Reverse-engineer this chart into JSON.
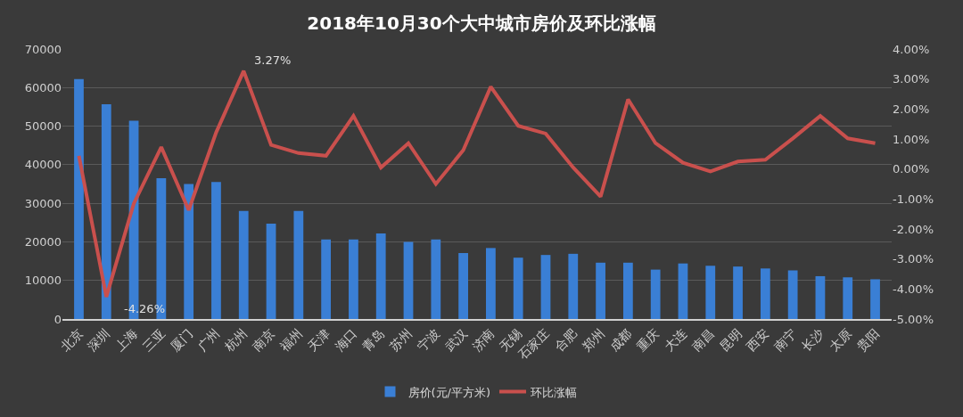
{
  "chart_data": {
    "type": "bar",
    "title": "2018年10月30个大中城市房价及环比涨幅",
    "categories": [
      "北京",
      "深圳",
      "上海",
      "三亚",
      "厦门",
      "广州",
      "杭州",
      "南京",
      "福州",
      "天津",
      "海口",
      "青岛",
      "苏州",
      "宁波",
      "武汉",
      "济南",
      "无锡",
      "石家庄",
      "合肥",
      "郑州",
      "成都",
      "重庆",
      "大连",
      "南昌",
      "昆明",
      "西安",
      "南宁",
      "长沙",
      "太原",
      "贵阳"
    ],
    "series": [
      {
        "name": "房价(元/平方米)",
        "color": "#3a7fd5",
        "values": [
          62200,
          55700,
          51400,
          36500,
          35000,
          35500,
          28000,
          24700,
          28000,
          20600,
          20600,
          22200,
          20000,
          20600,
          17100,
          18400,
          15900,
          16600,
          16900,
          14600,
          14600,
          12800,
          14400,
          13800,
          13600,
          13100,
          12600,
          11100,
          10800,
          10300
        ]
      },
      {
        "name": "环比涨幅",
        "type": "line",
        "axis": "y2",
        "color": "#c9504d",
        "values": [
          0.44,
          -4.26,
          -1.15,
          0.73,
          -1.37,
          1.22,
          3.27,
          0.8,
          0.53,
          0.44,
          1.77,
          0.05,
          0.86,
          -0.5,
          0.63,
          2.74,
          1.44,
          1.18,
          0.05,
          -0.92,
          2.32,
          0.86,
          0.21,
          -0.08,
          0.25,
          0.31,
          1.02,
          1.77,
          1.02,
          0.86
        ],
        "value_labels": [
          null,
          "-4.26%",
          null,
          null,
          null,
          null,
          "3.27%",
          null,
          null,
          null,
          null,
          null,
          null,
          null,
          null,
          null,
          null,
          null,
          null,
          null,
          null,
          null,
          null,
          null,
          null,
          null,
          null,
          null,
          null,
          null
        ]
      }
    ],
    "ylim": [
      0,
      70000
    ],
    "yticks": [
      0,
      10000,
      20000,
      30000,
      40000,
      50000,
      60000,
      70000
    ],
    "y2lim": [
      -5,
      4
    ],
    "y2ticks": [
      {
        "value": -5,
        "label": "-5.00%"
      },
      {
        "value": -4,
        "label": "-4.00%"
      },
      {
        "value": -3,
        "label": "-3.00%"
      },
      {
        "value": -2,
        "label": "-2.00%"
      },
      {
        "value": -1,
        "label": "-1.00%"
      },
      {
        "value": 0,
        "label": "0.00%"
      },
      {
        "value": 1,
        "label": "1.00%"
      },
      {
        "value": 2,
        "label": "2.00%"
      },
      {
        "value": 3,
        "label": "3.00%"
      },
      {
        "value": 4,
        "label": "4.00%"
      }
    ],
    "grid": "y",
    "legend": "bottom",
    "marker": "none",
    "line_style": "solid"
  }
}
